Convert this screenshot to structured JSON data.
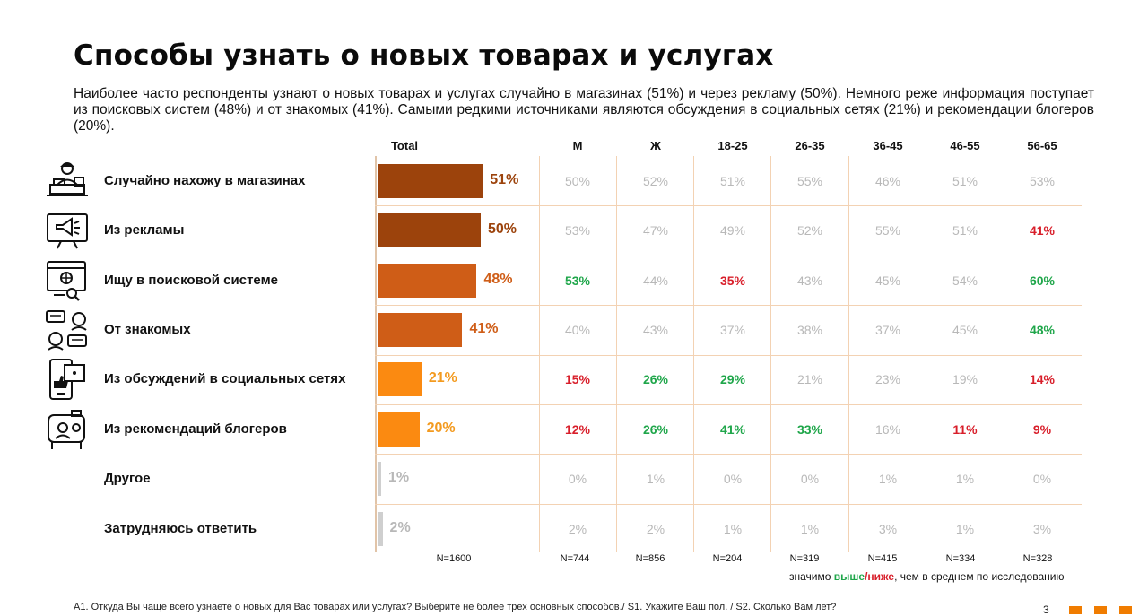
{
  "header": {
    "title": "Способы узнать о новых товарах и услугах",
    "subtitle": "Наиболее часто респонденты узнают о новых товарах и услугах случайно в магазинах (51%) и через рекламу (50%). Немного реже информация поступает из поисковых систем (48%) и от знакомых (41%). Самыми редкими источниками являются обсуждения в социальных сетях (21%) и рекомендации блогеров (20%)."
  },
  "chart_data": {
    "type": "bar",
    "orientation": "horizontal",
    "total_label": "Total",
    "columns": [
      "М",
      "Ж",
      "18-25",
      "26-35",
      "36-45",
      "46-55",
      "56-65"
    ],
    "rows": [
      {
        "label": "Случайно нахожу в магазинах",
        "icon": "shop-cashier-icon",
        "total": 51,
        "total_text": "51%",
        "cells": [
          {
            "text": "50%",
            "sig": "none"
          },
          {
            "text": "52%",
            "sig": "none"
          },
          {
            "text": "51%",
            "sig": "none"
          },
          {
            "text": "55%",
            "sig": "none"
          },
          {
            "text": "46%",
            "sig": "none"
          },
          {
            "text": "51%",
            "sig": "none"
          },
          {
            "text": "53%",
            "sig": "none"
          }
        ]
      },
      {
        "label": "Из рекламы",
        "icon": "megaphone-icon",
        "total": 50,
        "total_text": "50%",
        "cells": [
          {
            "text": "53%",
            "sig": "none"
          },
          {
            "text": "47%",
            "sig": "none"
          },
          {
            "text": "49%",
            "sig": "none"
          },
          {
            "text": "52%",
            "sig": "none"
          },
          {
            "text": "55%",
            "sig": "none"
          },
          {
            "text": "51%",
            "sig": "none"
          },
          {
            "text": "41%",
            "sig": "lower"
          }
        ]
      },
      {
        "label": "Ищу в поисковой системе",
        "icon": "web-search-icon",
        "total": 48,
        "total_text": "48%",
        "cells": [
          {
            "text": "53%",
            "sig": "higher"
          },
          {
            "text": "44%",
            "sig": "none"
          },
          {
            "text": "35%",
            "sig": "lower"
          },
          {
            "text": "43%",
            "sig": "none"
          },
          {
            "text": "45%",
            "sig": "none"
          },
          {
            "text": "54%",
            "sig": "none"
          },
          {
            "text": "60%",
            "sig": "higher"
          }
        ]
      },
      {
        "label": "От знакомых",
        "icon": "people-chat-icon",
        "total": 41,
        "total_text": "41%",
        "cells": [
          {
            "text": "40%",
            "sig": "none"
          },
          {
            "text": "43%",
            "sig": "none"
          },
          {
            "text": "37%",
            "sig": "none"
          },
          {
            "text": "38%",
            "sig": "none"
          },
          {
            "text": "37%",
            "sig": "none"
          },
          {
            "text": "45%",
            "sig": "none"
          },
          {
            "text": "48%",
            "sig": "higher"
          }
        ]
      },
      {
        "label": "Из обсуждений в социальных сетях",
        "icon": "social-like-icon",
        "total": 21,
        "total_text": "21%",
        "cells": [
          {
            "text": "15%",
            "sig": "lower"
          },
          {
            "text": "26%",
            "sig": "higher"
          },
          {
            "text": "29%",
            "sig": "higher"
          },
          {
            "text": "21%",
            "sig": "none"
          },
          {
            "text": "23%",
            "sig": "none"
          },
          {
            "text": "19%",
            "sig": "none"
          },
          {
            "text": "14%",
            "sig": "lower"
          }
        ]
      },
      {
        "label": "Из рекомендаций блогеров",
        "icon": "blogger-icon",
        "total": 20,
        "total_text": "20%",
        "cells": [
          {
            "text": "12%",
            "sig": "lower"
          },
          {
            "text": "26%",
            "sig": "higher"
          },
          {
            "text": "41%",
            "sig": "higher"
          },
          {
            "text": "33%",
            "sig": "higher"
          },
          {
            "text": "16%",
            "sig": "none"
          },
          {
            "text": "11%",
            "sig": "lower"
          },
          {
            "text": "9%",
            "sig": "lower"
          }
        ]
      },
      {
        "label": "Другое",
        "icon": "",
        "total": 1,
        "total_text": "1%",
        "cells": [
          {
            "text": "0%",
            "sig": "none"
          },
          {
            "text": "1%",
            "sig": "none"
          },
          {
            "text": "0%",
            "sig": "none"
          },
          {
            "text": "0%",
            "sig": "none"
          },
          {
            "text": "1%",
            "sig": "none"
          },
          {
            "text": "1%",
            "sig": "none"
          },
          {
            "text": "0%",
            "sig": "none"
          }
        ]
      },
      {
        "label": "Затрудняюсь ответить",
        "icon": "",
        "total": 2,
        "total_text": "2%",
        "cells": [
          {
            "text": "2%",
            "sig": "none"
          },
          {
            "text": "2%",
            "sig": "none"
          },
          {
            "text": "1%",
            "sig": "none"
          },
          {
            "text": "1%",
            "sig": "none"
          },
          {
            "text": "3%",
            "sig": "none"
          },
          {
            "text": "1%",
            "sig": "none"
          },
          {
            "text": "3%",
            "sig": "none"
          }
        ]
      }
    ],
    "sample_sizes": [
      "N=1600",
      "N=744",
      "N=856",
      "N=204",
      "N=319",
      "N=415",
      "N=334",
      "N=328"
    ],
    "bar_colors": [
      "#9c430c",
      "#9c430c",
      "#cf5d17",
      "#cf5d17",
      "#fb8a11",
      "#fb8a11",
      "#cfcfcf",
      "#cfcfcf"
    ],
    "label_colors": [
      "#9c430c",
      "#9c430c",
      "#cf5d17",
      "#cf5d17",
      "#f39a1f",
      "#f39a1f",
      "#b8b8b8",
      "#b8b8b8"
    ],
    "colors": {
      "higher": "#1fa64a",
      "lower": "#d81e2a",
      "neutral": "#b8b8b8",
      "grid": "#f3d2b3"
    }
  },
  "legend": {
    "prefix": "значимо ",
    "higher": "выше",
    "sep": "/",
    "lower": "ниже",
    "suffix": ", чем в среднем по исследованию"
  },
  "footer": {
    "note": "A1. Откуда Вы чаще всего узнаете о новых для Вас товарах или услугах? Выберите не более трех основных способов./ S1. Укажите Ваш пол. / S2. Сколько Вам лет?",
    "page": "3"
  }
}
